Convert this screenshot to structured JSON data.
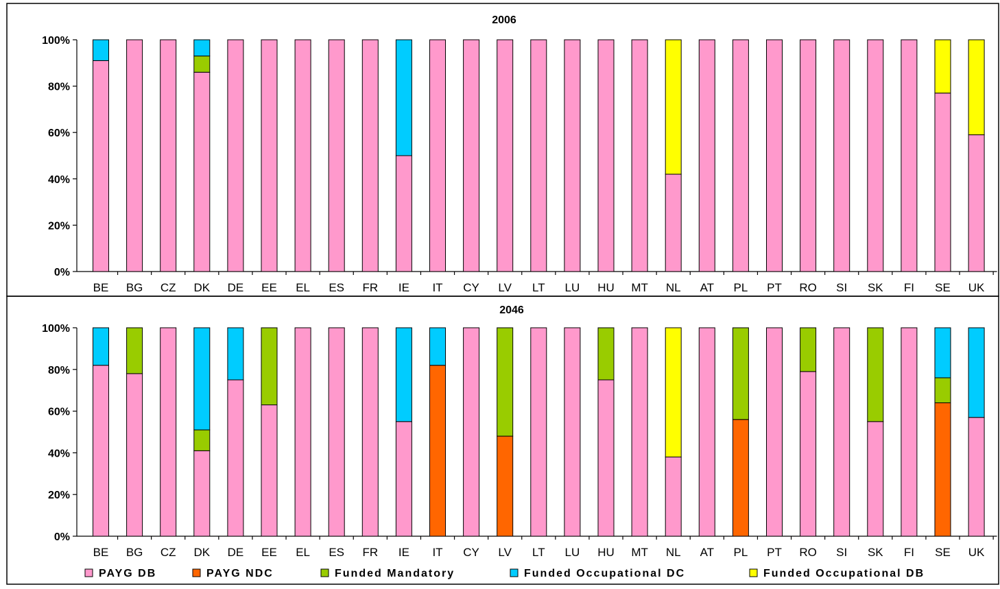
{
  "colors": {
    "PAYG DB": "#ff99cc",
    "PAYG NDC": "#ff6600",
    "Funded Mandatory": "#99cc00",
    "Funded Occupational DC": "#00ccff",
    "Funded Occupational DB": "#ffff00"
  },
  "legend": [
    "PAYG DB",
    "PAYG NDC",
    "Funded Mandatory",
    "Funded Occupational DC",
    "Funded Occupational DB"
  ],
  "chart_data": [
    {
      "type": "bar",
      "stacked": true,
      "title": "2006",
      "ylim": [
        0,
        100
      ],
      "yticks": [
        "0%",
        "20%",
        "40%",
        "60%",
        "80%",
        "100%"
      ],
      "categories": [
        "BE",
        "BG",
        "CZ",
        "DK",
        "DE",
        "EE",
        "EL",
        "ES",
        "FR",
        "IE",
        "IT",
        "CY",
        "LV",
        "LT",
        "LU",
        "HU",
        "MT",
        "NL",
        "AT",
        "PL",
        "PT",
        "RO",
        "SI",
        "SK",
        "FI",
        "SE",
        "UK"
      ],
      "series": [
        {
          "name": "PAYG DB",
          "values": [
            91,
            100,
            100,
            86,
            100,
            100,
            100,
            100,
            100,
            50,
            100,
            100,
            100,
            100,
            100,
            100,
            100,
            42,
            100,
            100,
            100,
            100,
            100,
            100,
            100,
            77,
            59
          ]
        },
        {
          "name": "PAYG NDC",
          "values": [
            0,
            0,
            0,
            0,
            0,
            0,
            0,
            0,
            0,
            0,
            0,
            0,
            0,
            0,
            0,
            0,
            0,
            0,
            0,
            0,
            0,
            0,
            0,
            0,
            0,
            0,
            0
          ]
        },
        {
          "name": "Funded Mandatory",
          "values": [
            0,
            0,
            0,
            7,
            0,
            0,
            0,
            0,
            0,
            0,
            0,
            0,
            0,
            0,
            0,
            0,
            0,
            0,
            0,
            0,
            0,
            0,
            0,
            0,
            0,
            0,
            0
          ]
        },
        {
          "name": "Funded Occupational DC",
          "values": [
            9,
            0,
            0,
            7,
            0,
            0,
            0,
            0,
            0,
            50,
            0,
            0,
            0,
            0,
            0,
            0,
            0,
            0,
            0,
            0,
            0,
            0,
            0,
            0,
            0,
            0,
            0
          ]
        },
        {
          "name": "Funded Occupational DB",
          "values": [
            0,
            0,
            0,
            0,
            0,
            0,
            0,
            0,
            0,
            0,
            0,
            0,
            0,
            0,
            0,
            0,
            0,
            58,
            0,
            0,
            0,
            0,
            0,
            0,
            0,
            23,
            41
          ]
        }
      ]
    },
    {
      "type": "bar",
      "stacked": true,
      "title": "2046",
      "ylim": [
        0,
        100
      ],
      "yticks": [
        "0%",
        "20%",
        "40%",
        "60%",
        "80%",
        "100%"
      ],
      "categories": [
        "BE",
        "BG",
        "CZ",
        "DK",
        "DE",
        "EE",
        "EL",
        "ES",
        "FR",
        "IE",
        "IT",
        "CY",
        "LV",
        "LT",
        "LU",
        "HU",
        "MT",
        "NL",
        "AT",
        "PL",
        "PT",
        "RO",
        "SI",
        "SK",
        "FI",
        "SE",
        "UK"
      ],
      "series": [
        {
          "name": "PAYG DB",
          "values": [
            82,
            78,
            100,
            41,
            75,
            63,
            100,
            100,
            100,
            55,
            0,
            100,
            0,
            100,
            100,
            75,
            100,
            38,
            100,
            0,
            100,
            79,
            100,
            55,
            100,
            0,
            57
          ]
        },
        {
          "name": "PAYG NDC",
          "values": [
            0,
            0,
            0,
            0,
            0,
            0,
            0,
            0,
            0,
            0,
            82,
            0,
            48,
            0,
            0,
            0,
            0,
            0,
            0,
            56,
            0,
            0,
            0,
            0,
            0,
            64,
            0
          ]
        },
        {
          "name": "Funded Mandatory",
          "values": [
            0,
            22,
            0,
            10,
            0,
            37,
            0,
            0,
            0,
            0,
            0,
            0,
            52,
            0,
            0,
            25,
            0,
            0,
            0,
            44,
            0,
            21,
            0,
            45,
            0,
            12,
            0
          ]
        },
        {
          "name": "Funded Occupational DC",
          "values": [
            18,
            0,
            0,
            49,
            25,
            0,
            0,
            0,
            0,
            45,
            18,
            0,
            0,
            0,
            0,
            0,
            0,
            0,
            0,
            0,
            0,
            0,
            0,
            0,
            0,
            24,
            43
          ]
        },
        {
          "name": "Funded Occupational DB",
          "values": [
            0,
            0,
            0,
            0,
            0,
            0,
            0,
            0,
            0,
            0,
            0,
            0,
            0,
            0,
            0,
            0,
            0,
            62,
            0,
            0,
            0,
            0,
            0,
            0,
            0,
            0,
            0
          ]
        }
      ]
    }
  ]
}
